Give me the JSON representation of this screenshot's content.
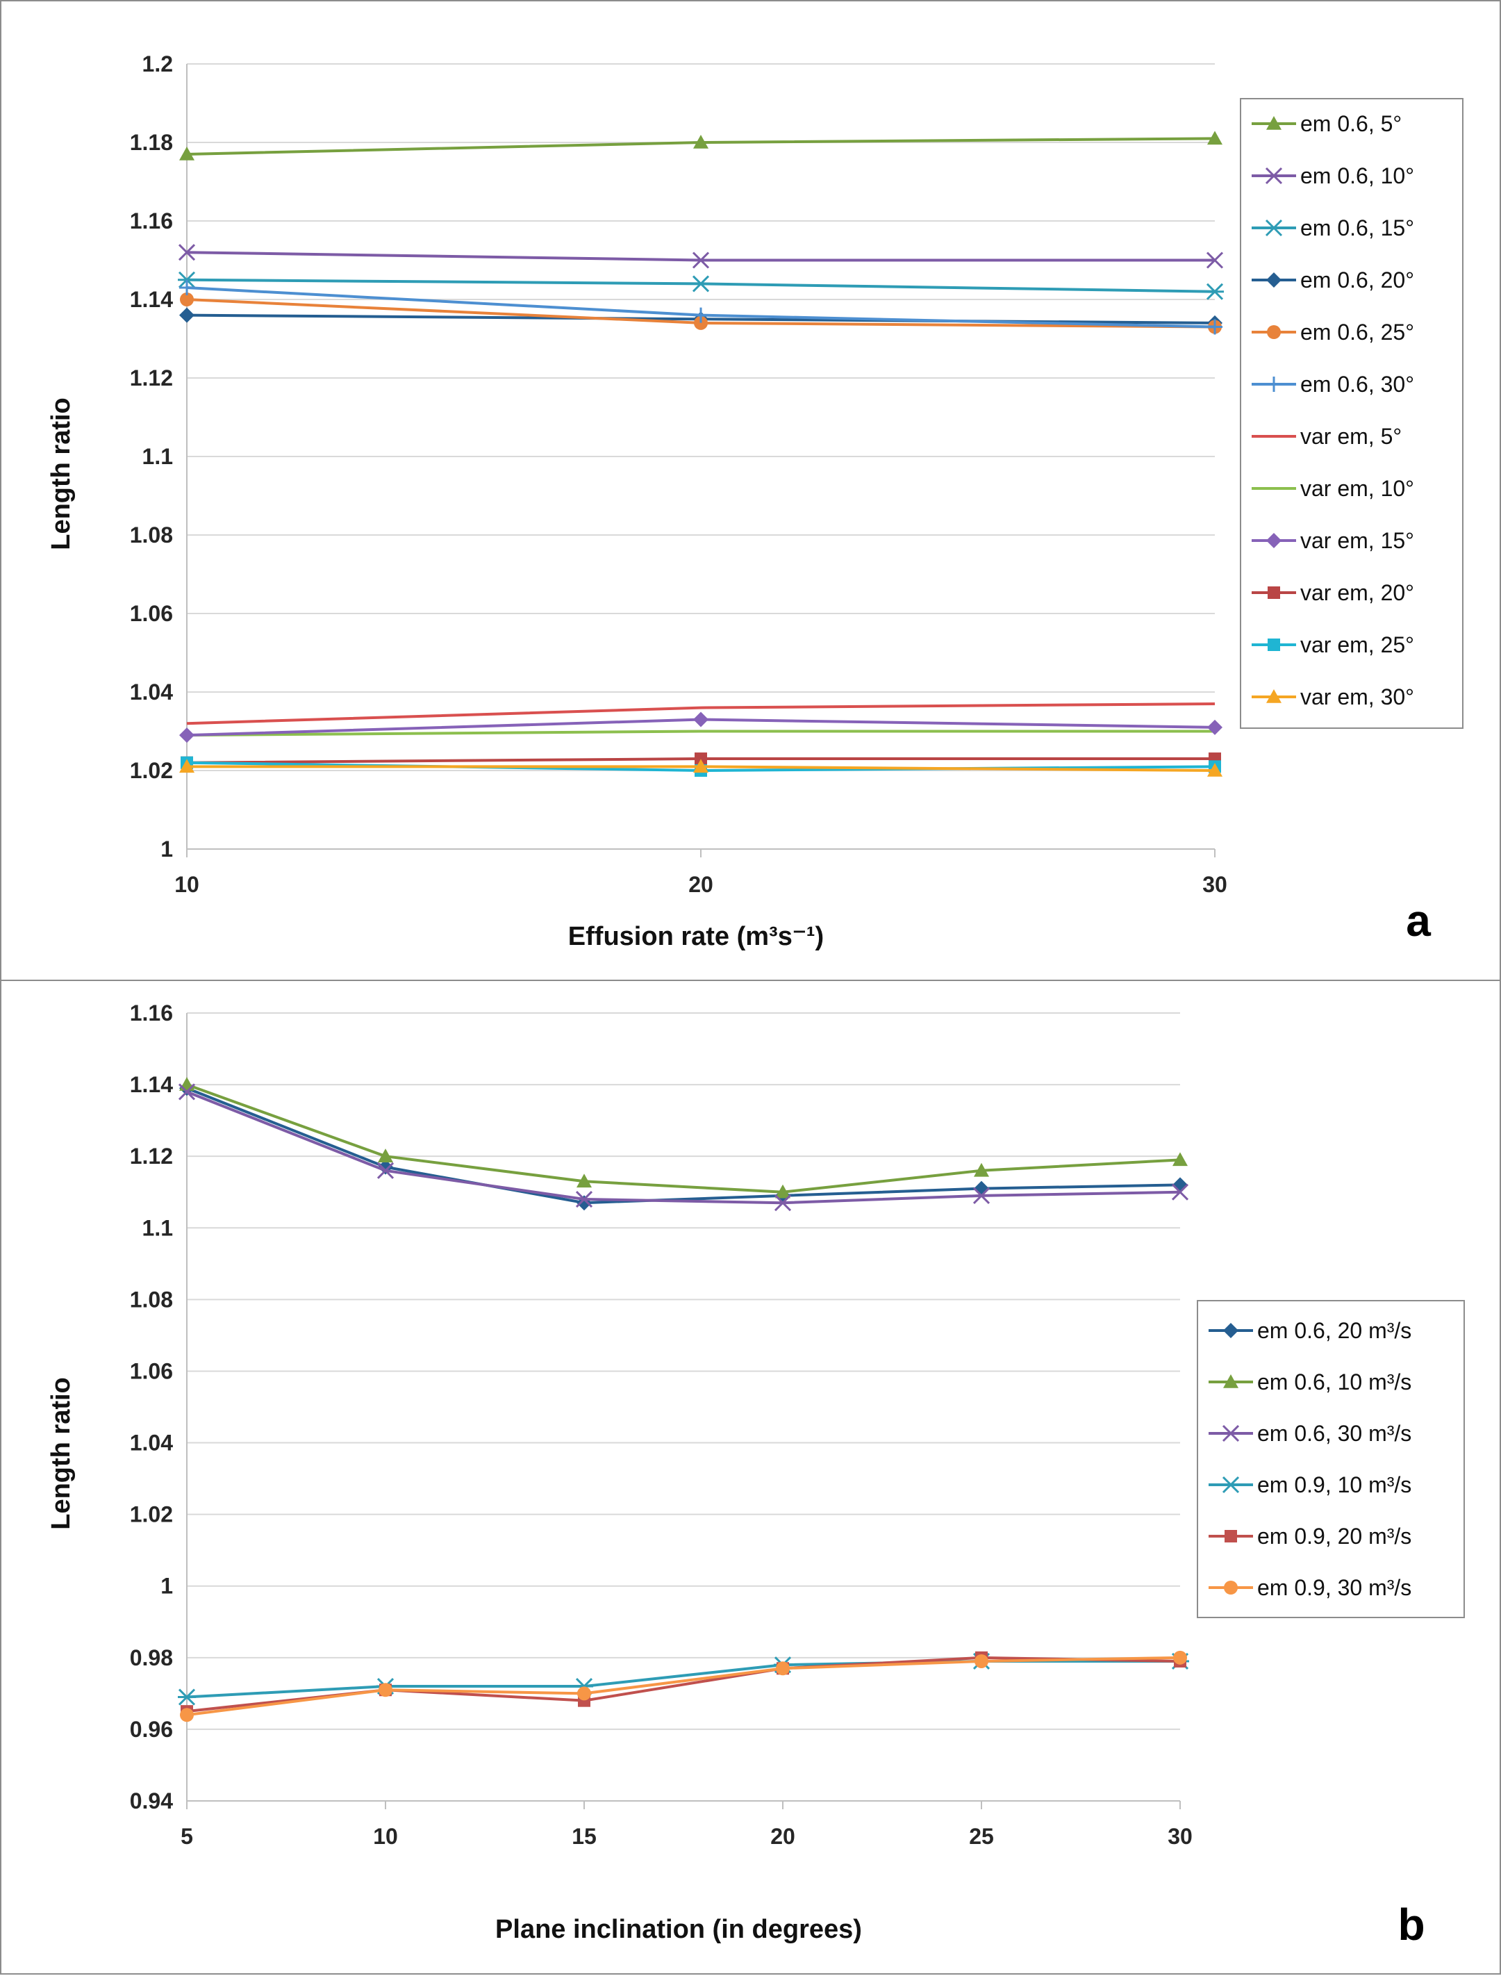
{
  "chart_data": [
    {
      "type": "line",
      "panel_label": "a",
      "title": "",
      "xlabel": "Effusion rate (m³s⁻¹)",
      "ylabel": "Length  ratio",
      "x": [
        10,
        20,
        30
      ],
      "x_ticks": [
        "10",
        "20",
        "30"
      ],
      "ylim": [
        1,
        1.2
      ],
      "y_ticks": [
        "1",
        "1.02",
        "1.04",
        "1.06",
        "1.08",
        "1.1",
        "1.12",
        "1.14",
        "1.16",
        "1.18",
        "1.2"
      ],
      "grid": true,
      "legend_position": "right",
      "series": [
        {
          "name": "em 0.6, 5°",
          "values": [
            1.177,
            1.18,
            1.181
          ],
          "color": "#77A03F",
          "marker": "triangle"
        },
        {
          "name": "em 0.6, 10°",
          "values": [
            1.152,
            1.15,
            1.15
          ],
          "color": "#7D5BA6",
          "marker": "x"
        },
        {
          "name": "em 0.6, 15°",
          "values": [
            1.145,
            1.144,
            1.142
          ],
          "color": "#2E9CB5",
          "marker": "star"
        },
        {
          "name": "em 0.6, 20°",
          "values": [
            1.136,
            1.135,
            1.134
          ],
          "color": "#255E91",
          "marker": "diamond"
        },
        {
          "name": "em 0.6, 25°",
          "values": [
            1.14,
            1.134,
            1.133
          ],
          "color": "#E8823A",
          "marker": "circle"
        },
        {
          "name": "em 0.6, 30°",
          "values": [
            1.143,
            1.136,
            1.133
          ],
          "color": "#4D8FD1",
          "marker": "plus"
        },
        {
          "name": "var em, 5°",
          "values": [
            1.032,
            1.036,
            1.037
          ],
          "color": "#D9504F",
          "marker": "none"
        },
        {
          "name": "var em, 10°",
          "values": [
            1.029,
            1.03,
            1.03
          ],
          "color": "#8CBF4E",
          "marker": "none"
        },
        {
          "name": "var em, 15°",
          "values": [
            1.029,
            1.033,
            1.031
          ],
          "color": "#8662B8",
          "marker": "diamond"
        },
        {
          "name": "var em, 20°",
          "values": [
            1.022,
            1.023,
            1.023
          ],
          "color": "#B94545",
          "marker": "square"
        },
        {
          "name": "var em, 25°",
          "values": [
            1.022,
            1.02,
            1.021
          ],
          "color": "#1FB5D3",
          "marker": "square"
        },
        {
          "name": "var em, 30°",
          "values": [
            1.021,
            1.021,
            1.02
          ],
          "color": "#F5A623",
          "marker": "triangle"
        }
      ]
    },
    {
      "type": "line",
      "panel_label": "b",
      "title": "",
      "xlabel": "Plane inclination (in degrees)",
      "ylabel": "Length  ratio",
      "x": [
        5,
        10,
        15,
        20,
        25,
        30
      ],
      "x_ticks": [
        "5",
        "10",
        "15",
        "20",
        "25",
        "30"
      ],
      "ylim": [
        0.94,
        1.16
      ],
      "y_ticks": [
        "0.94",
        "0.96",
        "0.98",
        "1",
        "1.02",
        "1.04",
        "1.06",
        "1.08",
        "1.1",
        "1.12",
        "1.14",
        "1.16"
      ],
      "grid": true,
      "legend_position": "right",
      "series": [
        {
          "name": "em 0.6, 20 m³/s",
          "values": [
            1.139,
            1.117,
            1.107,
            1.109,
            1.111,
            1.112
          ],
          "color": "#255E91",
          "marker": "diamond"
        },
        {
          "name": "em 0.6, 10 m³/s",
          "values": [
            1.14,
            1.12,
            1.113,
            1.11,
            1.116,
            1.119
          ],
          "color": "#77A03F",
          "marker": "triangle"
        },
        {
          "name": "em 0.6, 30 m³/s",
          "values": [
            1.138,
            1.116,
            1.108,
            1.107,
            1.109,
            1.11
          ],
          "color": "#7D5BA6",
          "marker": "x"
        },
        {
          "name": "em 0.9, 10 m³/s",
          "values": [
            0.969,
            0.972,
            0.972,
            0.978,
            0.979,
            0.979
          ],
          "color": "#2E9CB5",
          "marker": "star"
        },
        {
          "name": "em 0.9, 20 m³/s",
          "values": [
            0.965,
            0.971,
            0.968,
            0.977,
            0.98,
            0.979
          ],
          "color": "#C0504D",
          "marker": "square"
        },
        {
          "name": "em 0.9, 30 m³/s",
          "values": [
            0.964,
            0.971,
            0.97,
            0.977,
            0.979,
            0.98
          ],
          "color": "#F79646",
          "marker": "circle"
        }
      ]
    }
  ]
}
